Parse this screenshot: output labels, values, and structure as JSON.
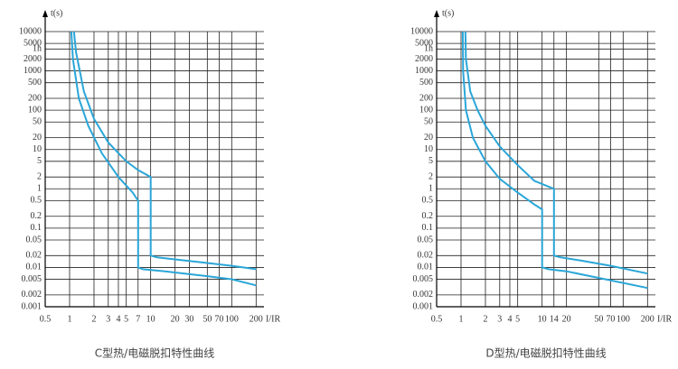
{
  "chart_data": [
    {
      "type": "line",
      "title": "C型热/电磁脱扣特性曲线",
      "y_label": "t(s)",
      "x_label": "I/IR",
      "log_x": true,
      "log_y": true,
      "grid": true,
      "xlim": [
        0.5,
        250
      ],
      "ylim": [
        0.001,
        10000
      ],
      "xticks": [
        0.5,
        1,
        2,
        3,
        4,
        5,
        7,
        10,
        20,
        30,
        50,
        70,
        100,
        200
      ],
      "yticks": [
        10000,
        5000,
        {
          "value": 3600,
          "label": "1h"
        },
        2000,
        1000,
        500,
        200,
        100,
        50,
        20,
        10,
        5,
        2,
        1,
        0.5,
        0.2,
        0.1,
        0.05,
        0.02,
        0.01,
        0.005,
        0.002,
        0.001
      ],
      "series": [
        {
          "color": "#2aa6d8",
          "x": [
            1.13,
            1.2,
            1.5,
            2,
            3,
            5,
            7,
            10,
            10,
            12,
            20,
            50,
            100,
            200
          ],
          "values": [
            10000,
            3000,
            300,
            60,
            15,
            5,
            3,
            2,
            0.02,
            0.018,
            0.016,
            0.013,
            0.011,
            0.009
          ]
        },
        {
          "color": "#2aa6d8",
          "x": [
            1.05,
            1.1,
            1.3,
            1.7,
            2.5,
            4,
            6,
            7,
            7,
            8,
            15,
            50,
            100,
            200
          ],
          "values": [
            10000,
            2000,
            200,
            40,
            8,
            2,
            0.8,
            0.5,
            0.01,
            0.009,
            0.008,
            0.006,
            0.005,
            0.0035
          ]
        }
      ]
    },
    {
      "type": "line",
      "title": "D型热/电磁脱扣特性曲线",
      "y_label": "t(s)",
      "x_label": "I/IR",
      "log_x": true,
      "log_y": true,
      "grid": true,
      "xlim": [
        0.5,
        250
      ],
      "ylim": [
        0.001,
        10000
      ],
      "xticks": [
        0.5,
        1,
        2,
        3,
        4,
        5,
        10,
        14,
        20,
        50,
        70,
        100,
        200
      ],
      "yticks": [
        10000,
        5000,
        {
          "value": 3600,
          "label": "1h"
        },
        2000,
        1000,
        500,
        200,
        100,
        50,
        20,
        10,
        5,
        2,
        1,
        0.5,
        0.2,
        0.1,
        0.05,
        0.02,
        0.01,
        0.005,
        0.002,
        0.001
      ],
      "series": [
        {
          "color": "#2aa6d8",
          "x": [
            1.13,
            1.15,
            1.3,
            1.6,
            2,
            3,
            5,
            8,
            14,
            14,
            17,
            30,
            70,
            200
          ],
          "values": [
            10000,
            2000,
            300,
            100,
            40,
            12,
            4,
            1.6,
            1,
            0.02,
            0.018,
            0.015,
            0.011,
            0.007
          ]
        },
        {
          "color": "#2aa6d8",
          "x": [
            1.05,
            1.06,
            1.15,
            1.4,
            2,
            3,
            5,
            8,
            10,
            10,
            12,
            20,
            60,
            200
          ],
          "values": [
            10000,
            1000,
            100,
            20,
            5,
            1.8,
            0.8,
            0.4,
            0.3,
            0.01,
            0.009,
            0.008,
            0.005,
            0.003
          ]
        }
      ]
    }
  ]
}
